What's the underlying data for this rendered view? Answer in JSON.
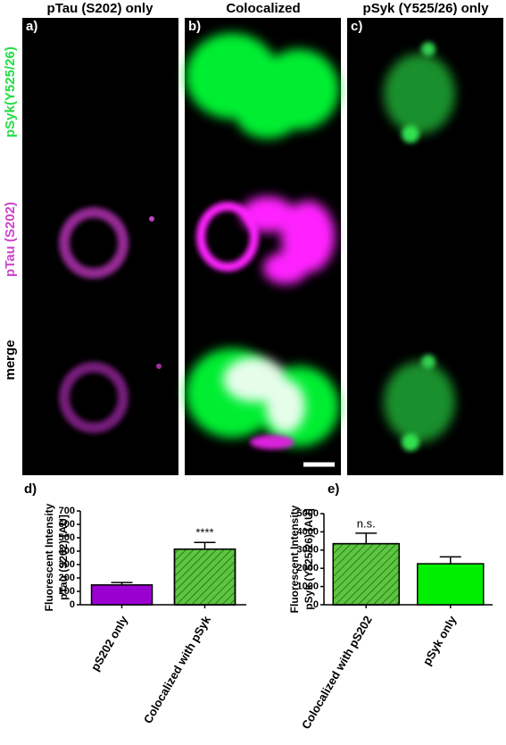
{
  "images": {
    "columns": [
      "pTau (S202) only",
      "Colocalized",
      "pSyk (Y525/26) only"
    ],
    "panel_labels": [
      "a)",
      "b)",
      "c)"
    ],
    "row_labels": [
      "pSyk(Y525/26)",
      "pTau (S202)",
      "merge"
    ]
  },
  "chart_data": [
    {
      "type": "bar",
      "panel_label": "d)",
      "ylabel": [
        "Fluorescent Intensity",
        "pTau (S202) [AU]"
      ],
      "categories": [
        "pS202 only",
        "Colocalized with pSyk"
      ],
      "values": [
        148,
        415
      ],
      "errors": [
        18,
        50
      ],
      "colors": [
        "#9a00d0",
        "#5cc640"
      ],
      "hatch": [
        false,
        true
      ],
      "annotations": [
        null,
        "****"
      ],
      "ylim": [
        0,
        700
      ],
      "yticks": [
        0,
        100,
        200,
        300,
        400,
        500,
        600,
        700
      ]
    },
    {
      "type": "bar",
      "panel_label": "e)",
      "ylabel": [
        "Fluorescent Intensity",
        "pSyk (Y525/26) [AU]"
      ],
      "categories": [
        "Colocalized with pS202",
        "pSyk only"
      ],
      "values": [
        3350,
        2250
      ],
      "errors": [
        580,
        380
      ],
      "colors": [
        "#5cc640",
        "#00ee00"
      ],
      "hatch": [
        true,
        false
      ],
      "annotations": [
        "n.s.",
        null
      ],
      "ylim": [
        0,
        5000
      ],
      "yticks": [
        0,
        1000,
        2000,
        3000,
        4000,
        5000
      ]
    }
  ]
}
